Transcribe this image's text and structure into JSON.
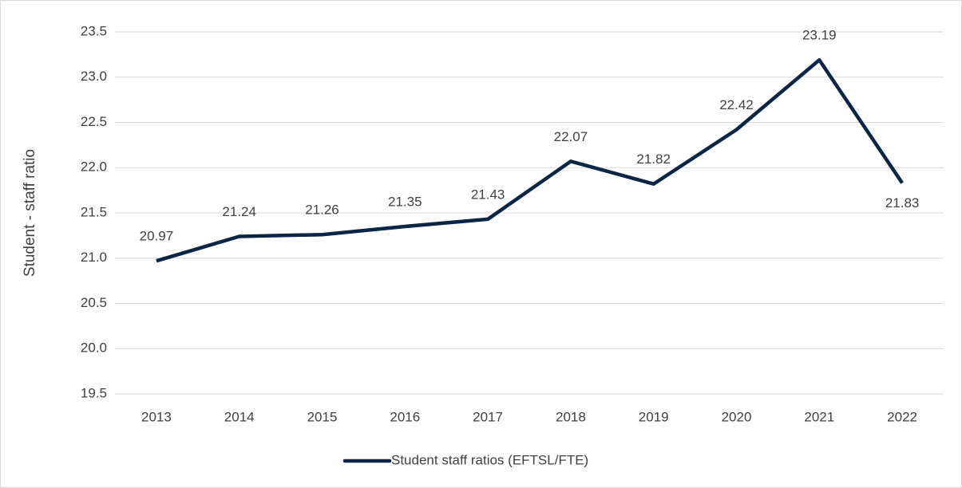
{
  "chart_data": {
    "type": "line",
    "y_label": "Student - staff ratio",
    "categories": [
      "2013",
      "2014",
      "2015",
      "2016",
      "2017",
      "2018",
      "2019",
      "2020",
      "2021",
      "2022"
    ],
    "series": [
      {
        "name": "Student staff ratios (EFTSL/FTE)",
        "color": "#0b2545",
        "values": [
          20.97,
          21.24,
          21.26,
          21.35,
          21.43,
          22.07,
          21.82,
          22.42,
          23.19,
          21.83
        ]
      }
    ],
    "ylim": [
      19.5,
      23.5
    ],
    "yticks": [
      19.5,
      {
        "value": 20,
        "label": "20.0"
      },
      20.5,
      {
        "value": 21,
        "label": "21.0"
      },
      21.5,
      {
        "value": 22,
        "label": "22.0"
      },
      22.5,
      {
        "value": 23,
        "label": "23.0"
      },
      23.5
    ],
    "grid": true,
    "legend": "bottom"
  }
}
